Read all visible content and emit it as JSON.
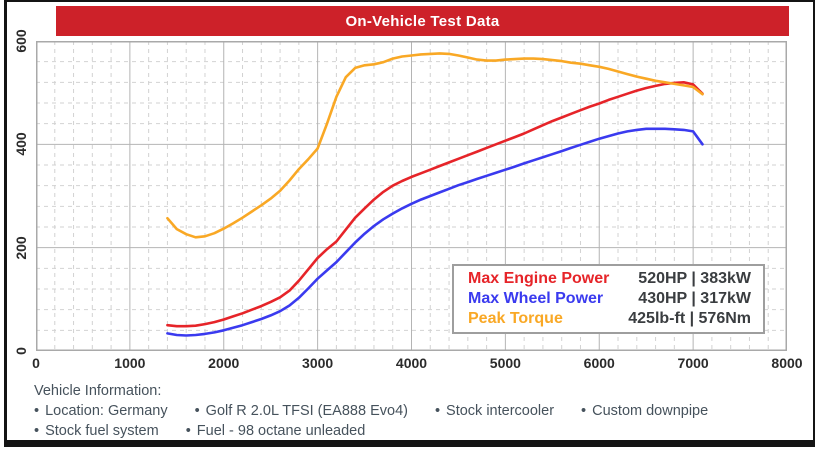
{
  "title_bar": {
    "text": "On-Vehicle Test Data",
    "bg": "#cd2129",
    "text_color": "#ffffff"
  },
  "chart_data": {
    "type": "line",
    "x_unit": "RPM",
    "xlim": [
      0,
      8000
    ],
    "ylim": [
      0,
      600
    ],
    "x_ticks": [
      0,
      1000,
      2000,
      3000,
      4000,
      5000,
      6000,
      7000,
      8000
    ],
    "y_ticks": [
      0,
      200,
      400,
      600
    ],
    "x_minor_step": 200,
    "y_minor_step": 40,
    "grid": true,
    "legend_position": "inside-bottom-right",
    "x": [
      1400,
      1500,
      1600,
      1700,
      1800,
      1900,
      2000,
      2100,
      2200,
      2300,
      2400,
      2500,
      2600,
      2700,
      2800,
      2900,
      3000,
      3100,
      3200,
      3300,
      3400,
      3500,
      3600,
      3700,
      3800,
      3900,
      4000,
      4100,
      4200,
      4300,
      4400,
      4500,
      4600,
      4700,
      4800,
      4900,
      5000,
      5100,
      5200,
      5300,
      5400,
      5500,
      5600,
      5700,
      5800,
      5900,
      6000,
      6100,
      6200,
      6300,
      6400,
      6500,
      6600,
      6700,
      6800,
      6900,
      7000,
      7100
    ],
    "series": [
      {
        "name": "Max Engine Power",
        "unit": "HP",
        "color": "#e62429",
        "values": [
          50,
          48,
          48,
          49,
          52,
          56,
          61,
          67,
          73,
          80,
          87,
          95,
          104,
          117,
          136,
          158,
          180,
          197,
          212,
          235,
          258,
          276,
          293,
          308,
          320,
          329,
          337,
          344,
          351,
          358,
          365,
          372,
          379,
          386,
          393,
          400,
          407,
          414,
          421,
          429,
          437,
          445,
          452,
          459,
          466,
          473,
          479,
          486,
          492,
          498,
          504,
          509,
          513,
          517,
          519,
          520,
          516,
          498
        ]
      },
      {
        "name": "Max Wheel Power",
        "unit": "HP",
        "color": "#3a3aef",
        "values": [
          34,
          31,
          30,
          31,
          33,
          36,
          40,
          45,
          50,
          56,
          62,
          69,
          77,
          88,
          103,
          121,
          140,
          156,
          172,
          191,
          210,
          227,
          242,
          255,
          266,
          276,
          285,
          293,
          300,
          307,
          314,
          321,
          327,
          333,
          339,
          345,
          351,
          357,
          363,
          369,
          375,
          381,
          387,
          393,
          399,
          405,
          411,
          416,
          421,
          425,
          428,
          430,
          430,
          430,
          429,
          428,
          425,
          400
        ]
      },
      {
        "name": "Peak Torque",
        "unit": "Nm",
        "color": "#f9a825",
        "values": [
          257,
          236,
          226,
          220,
          222,
          228,
          237,
          247,
          258,
          270,
          282,
          295,
          310,
          330,
          352,
          371,
          392,
          440,
          492,
          530,
          548,
          553,
          555,
          559,
          566,
          570,
          572,
          574,
          575,
          576,
          575,
          572,
          568,
          564,
          562,
          562,
          564,
          565,
          566,
          566,
          565,
          563,
          561,
          558,
          556,
          553,
          550,
          546,
          541,
          536,
          531,
          527,
          523,
          520,
          517,
          514,
          511,
          497
        ]
      }
    ]
  },
  "legend": {
    "rows": [
      {
        "label": "Max Engine Power",
        "value": "520HP | 383kW",
        "color": "#e62429"
      },
      {
        "label": "Max Wheel Power",
        "value": "430HP | 317kW",
        "color": "#3a3aef"
      },
      {
        "label": "Peak Torque",
        "value": "425lb-ft | 576Nm",
        "color": "#f9a825"
      }
    ]
  },
  "vehicle_info": {
    "heading": "Vehicle Information:",
    "bullet": "•",
    "row1": [
      "Location: Germany",
      "Golf R 2.0L TFSI (EA888 Evo4)",
      "Stock intercooler",
      "Custom downpipe"
    ],
    "row2": [
      "Stock fuel system",
      "Fuel - 98 octane unleaded"
    ]
  },
  "grid_colors": {
    "major": "#b4b4b4",
    "minor": "#d2d2d2",
    "border": "#a9a9a9"
  }
}
